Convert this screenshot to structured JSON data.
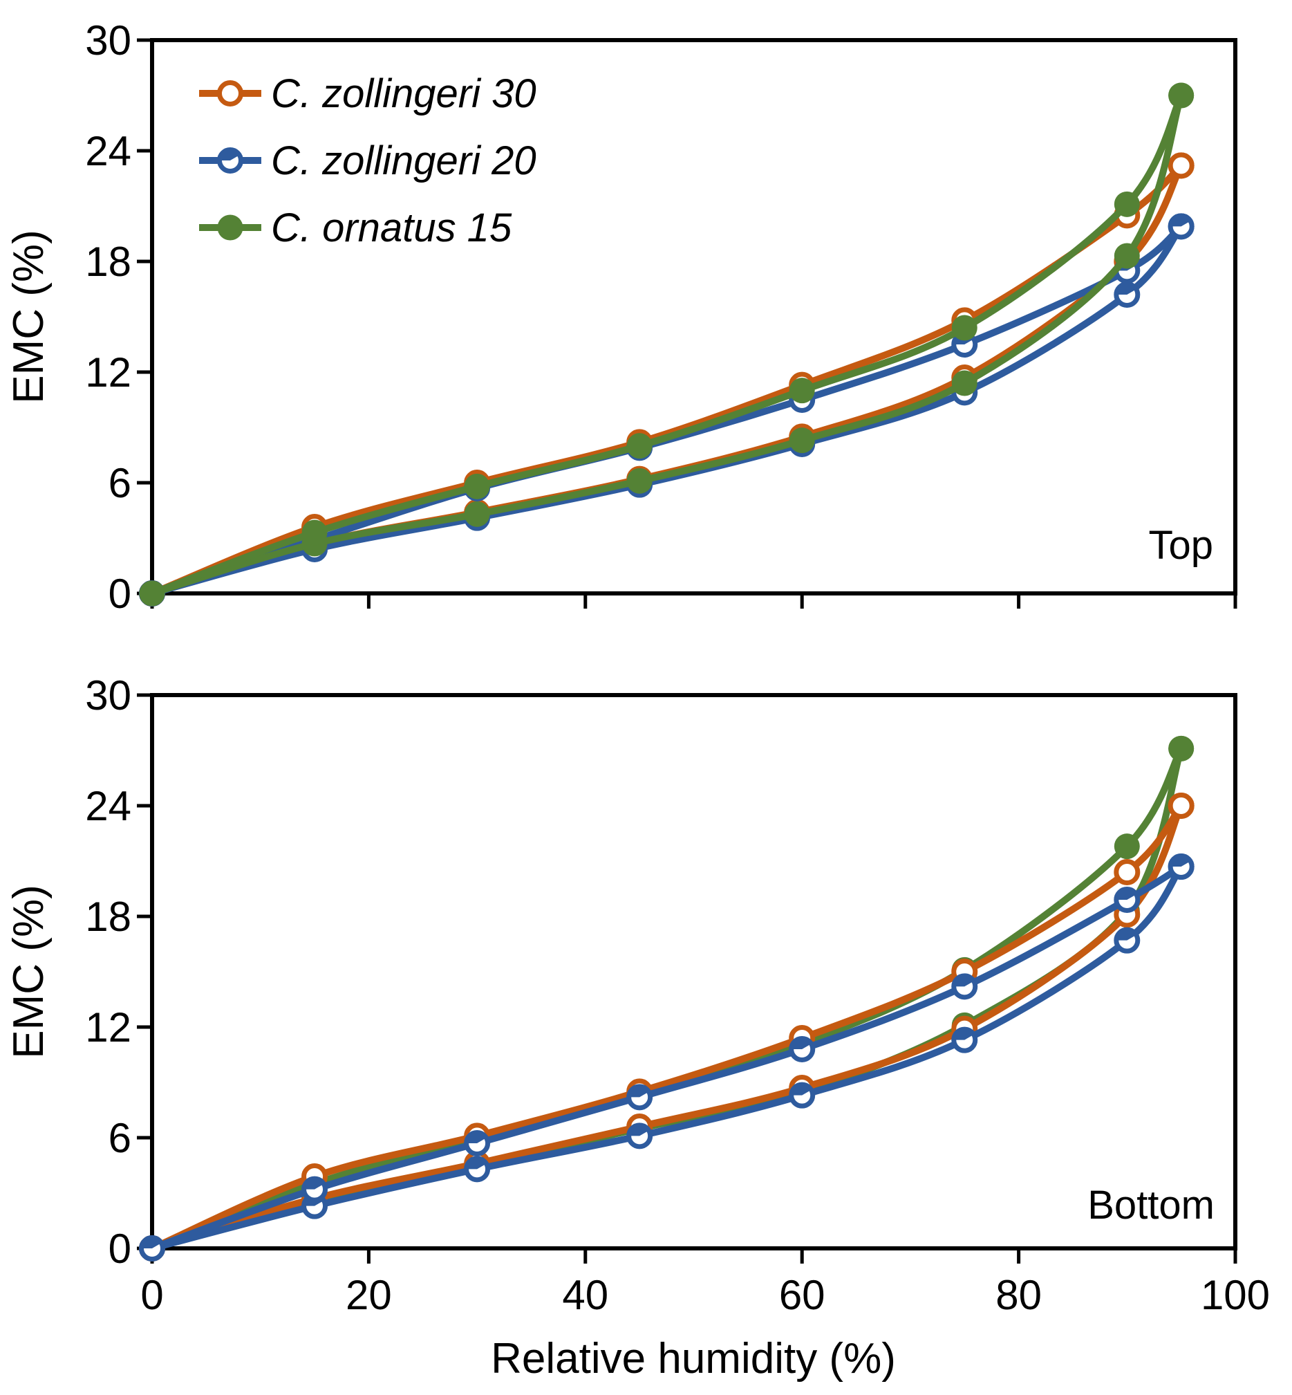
{
  "figure": {
    "background": "#ffffff",
    "axis_color": "#000000"
  },
  "chart_data": {
    "type": "line",
    "xlabel": "Relative humidity (%)",
    "ylabel": "EMC (%)",
    "xlim": [
      0,
      100
    ],
    "ylim": [
      0,
      30
    ],
    "xticks": [
      0,
      20,
      40,
      60,
      80,
      100
    ],
    "yticks": [
      0,
      6,
      12,
      18,
      24,
      30
    ],
    "x": [
      0,
      15,
      30,
      45,
      60,
      75,
      90,
      95
    ],
    "legend": {
      "position": "top-left-inside",
      "entries": [
        "C. zollingeri 30",
        "C. zollingeri 20",
        "C. ornatus 15"
      ]
    },
    "colors": {
      "orange": "#C55A11",
      "blue": "#2E5B9E",
      "green": "#548235"
    },
    "panels": [
      {
        "label": "Top",
        "show_x_tick_labels": false,
        "show_legend": true,
        "draw_order": [
          0,
          1,
          2
        ],
        "series": [
          {
            "name": "C. zollingeri 30",
            "color": "#C55A11",
            "marker": "open",
            "adsorption": [
              0,
              2.7,
              4.4,
              6.2,
              8.5,
              11.7,
              18.0,
              23.2
            ],
            "desorption": [
              0,
              3.6,
              6.0,
              8.2,
              11.3,
              14.8,
              20.5,
              23.2
            ]
          },
          {
            "name": "C. zollingeri 20",
            "color": "#2E5B9E",
            "marker": "half",
            "adsorption": [
              0,
              2.4,
              4.1,
              5.9,
              8.1,
              10.9,
              16.2,
              19.9
            ],
            "desorption": [
              0,
              2.9,
              5.7,
              7.9,
              10.5,
              13.5,
              17.5,
              19.9
            ]
          },
          {
            "name": "C. ornatus 15",
            "color": "#548235",
            "marker": "filled",
            "adsorption": [
              0,
              2.7,
              4.3,
              6.1,
              8.3,
              11.4,
              18.3,
              27.0
            ],
            "desorption": [
              0,
              3.3,
              5.8,
              8.0,
              11.0,
              14.4,
              21.1,
              27.0
            ]
          }
        ]
      },
      {
        "label": "Bottom",
        "show_x_tick_labels": true,
        "show_legend": false,
        "draw_order": [
          2,
          0,
          1
        ],
        "series": [
          {
            "name": "C. zollingeri 30",
            "color": "#C55A11",
            "marker": "open",
            "adsorption": [
              0,
              2.7,
              4.6,
              6.6,
              8.7,
              11.9,
              18.1,
              24.0
            ],
            "desorption": [
              0,
              3.9,
              6.1,
              8.5,
              11.4,
              15.0,
              20.4,
              24.0
            ]
          },
          {
            "name": "C. zollingeri 20",
            "color": "#2E5B9E",
            "marker": "half",
            "adsorption": [
              0,
              2.3,
              4.3,
              6.1,
              8.3,
              11.3,
              16.7,
              20.7
            ],
            "desorption": [
              0,
              3.2,
              5.7,
              8.2,
              10.8,
              14.2,
              18.9,
              20.7
            ]
          },
          {
            "name": "C. ornatus 15",
            "color": "#548235",
            "marker": "filled",
            "adsorption": [
              0,
              2.6,
              4.5,
              6.5,
              8.5,
              12.1,
              18.3,
              27.1
            ],
            "desorption": [
              0,
              3.5,
              6.0,
              8.4,
              11.1,
              15.1,
              21.8,
              27.1
            ]
          }
        ]
      }
    ]
  }
}
